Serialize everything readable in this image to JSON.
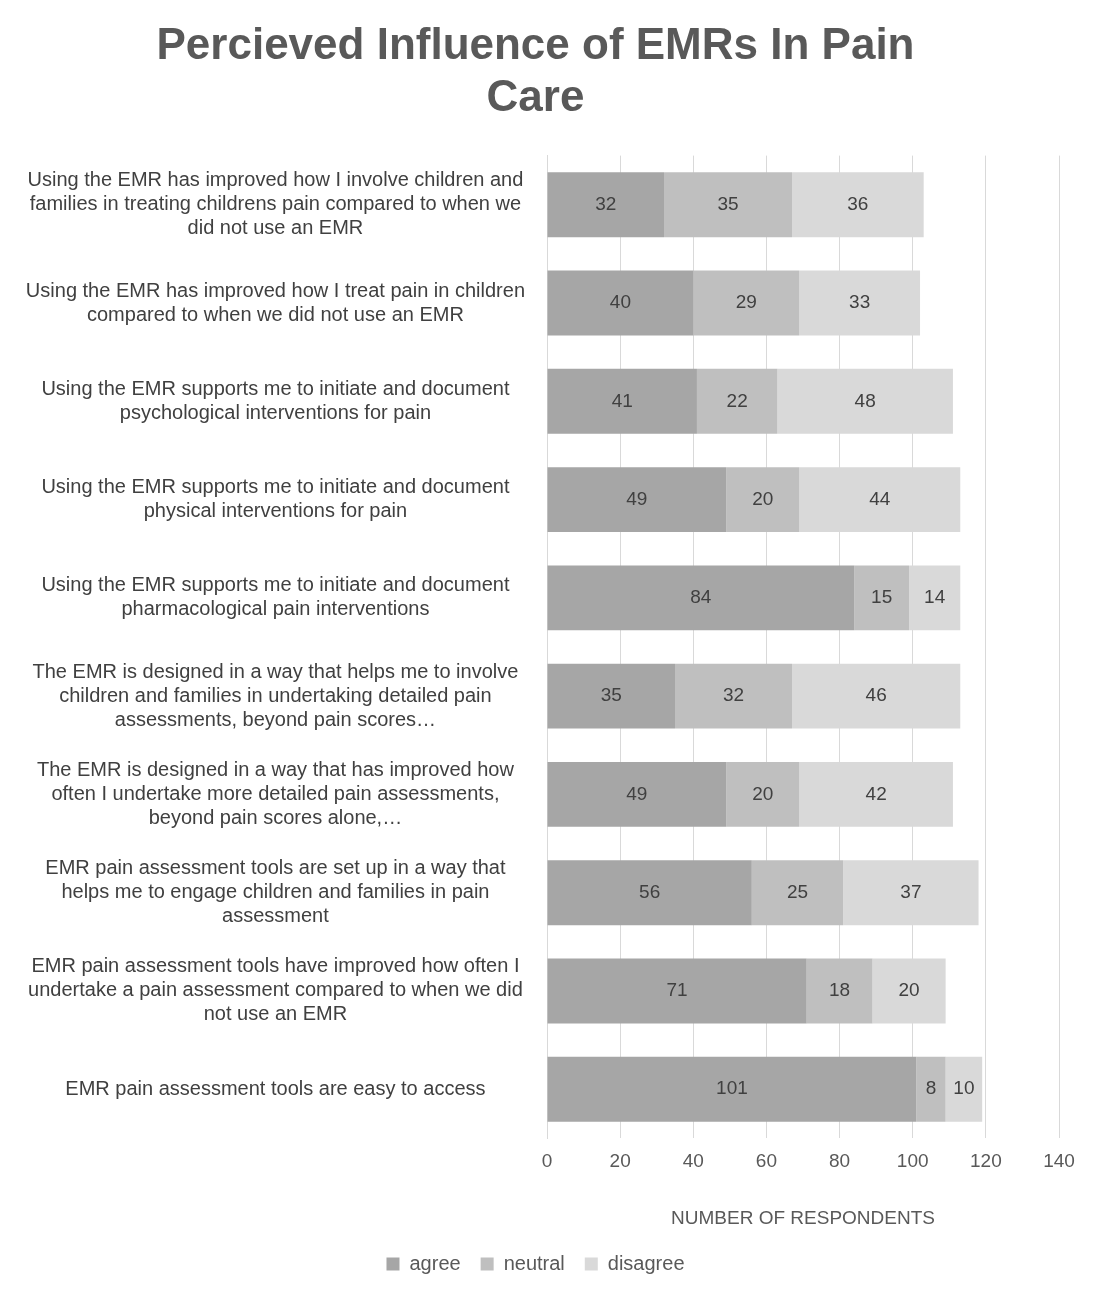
{
  "chart_data": {
    "type": "bar",
    "orientation": "horizontal",
    "stacked": true,
    "title": "Percieved Influence of EMRs In Pain Care",
    "xlabel": "NUMBER OF RESPONDENTS",
    "categories": [
      "Using the EMR has improved how I involve children and families in treating childrens pain compared to when we did not use an EMR",
      "Using the EMR has improved how I treat pain in children compared to when we did not use an EMR",
      "Using the EMR supports me to initiate and document psychological interventions for pain",
      "Using the EMR supports me to initiate and document physical interventions for pain",
      "Using the EMR supports me to initiate and document pharmacological pain interventions",
      "The EMR is designed in a way that helps me to involve children and families in undertaking detailed pain assessments, beyond pain scores…",
      "The EMR is designed in a way that has improved how often I undertake more detailed pain assessments, beyond pain scores alone,…",
      "EMR pain assessment tools are set up in a way that helps me to engage children and families in pain assessment",
      "EMR pain assessment tools have improved how often I undertake a pain assessment compared to when we did not use an EMR",
      "EMR pain assessment tools are easy to access"
    ],
    "series": [
      {
        "name": "agree",
        "color": "#a6a6a6",
        "values": [
          32,
          40,
          41,
          49,
          84,
          35,
          49,
          56,
          71,
          101
        ]
      },
      {
        "name": "neutral",
        "color": "#bfbfbf",
        "values": [
          35,
          29,
          22,
          20,
          15,
          32,
          20,
          25,
          18,
          8
        ]
      },
      {
        "name": "disagree",
        "color": "#d9d9d9",
        "values": [
          36,
          33,
          48,
          44,
          14,
          46,
          42,
          37,
          20,
          10
        ]
      }
    ],
    "xlim": [
      0,
      140
    ],
    "xticks": [
      0,
      20,
      40,
      60,
      80,
      100,
      120,
      140
    ],
    "grid": "x",
    "legend": "bottom",
    "data_labels": true
  }
}
